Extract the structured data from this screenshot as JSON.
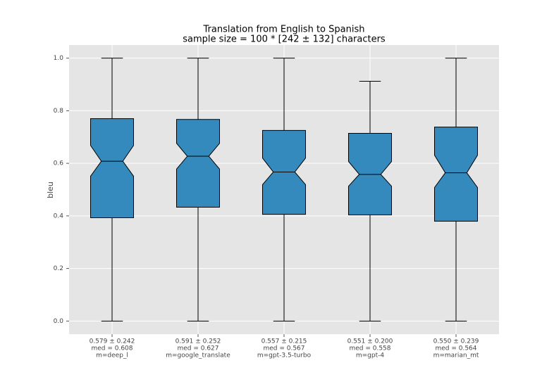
{
  "chart_data": {
    "type": "boxplot",
    "title": "Translation from English to Spanish",
    "subtitle": "sample size = 100 * [242 ± 132] characters",
    "ylabel": "bleu",
    "categories": [
      [
        "0.579 ± 0.242",
        "med = 0.608",
        "m=deep_l"
      ],
      [
        "0.591 ± 0.252",
        "med = 0.627",
        "m=google_translate"
      ],
      [
        "0.557 ± 0.215",
        "med = 0.567",
        "m=gpt-3.5-turbo"
      ],
      [
        "0.551 ± 0.200",
        "med = 0.558",
        "m=gpt-4"
      ],
      [
        "0.550 ± 0.239",
        "med = 0.564",
        "m=marian_mt"
      ]
    ],
    "boxes": [
      {
        "whislo": 0,
        "q1": 0.393,
        "notch_low": 0.551,
        "med": 0.608,
        "notch_high": 0.668,
        "q3": 0.77,
        "whishi": 1
      },
      {
        "whislo": 0,
        "q1": 0.433,
        "notch_low": 0.578,
        "med": 0.627,
        "notch_high": 0.676,
        "q3": 0.767,
        "whishi": 1
      },
      {
        "whislo": 0,
        "q1": 0.406,
        "notch_low": 0.519,
        "med": 0.567,
        "notch_high": 0.62,
        "q3": 0.725,
        "whishi": 1
      },
      {
        "whislo": 0,
        "q1": 0.404,
        "notch_low": 0.513,
        "med": 0.558,
        "notch_high": 0.607,
        "q3": 0.714,
        "whishi": 0.912
      },
      {
        "whislo": 0,
        "q1": 0.38,
        "notch_low": 0.508,
        "med": 0.564,
        "notch_high": 0.631,
        "q3": 0.738,
        "whishi": 1
      }
    ],
    "color": "#348abd",
    "ylim": [
      -0.05,
      1.05
    ],
    "yticks": [
      {
        "value": 0,
        "label": "0.0"
      },
      0.2,
      0.4,
      0.6,
      0.8,
      {
        "value": 1,
        "label": "1.0"
      }
    ],
    "grid": true
  }
}
